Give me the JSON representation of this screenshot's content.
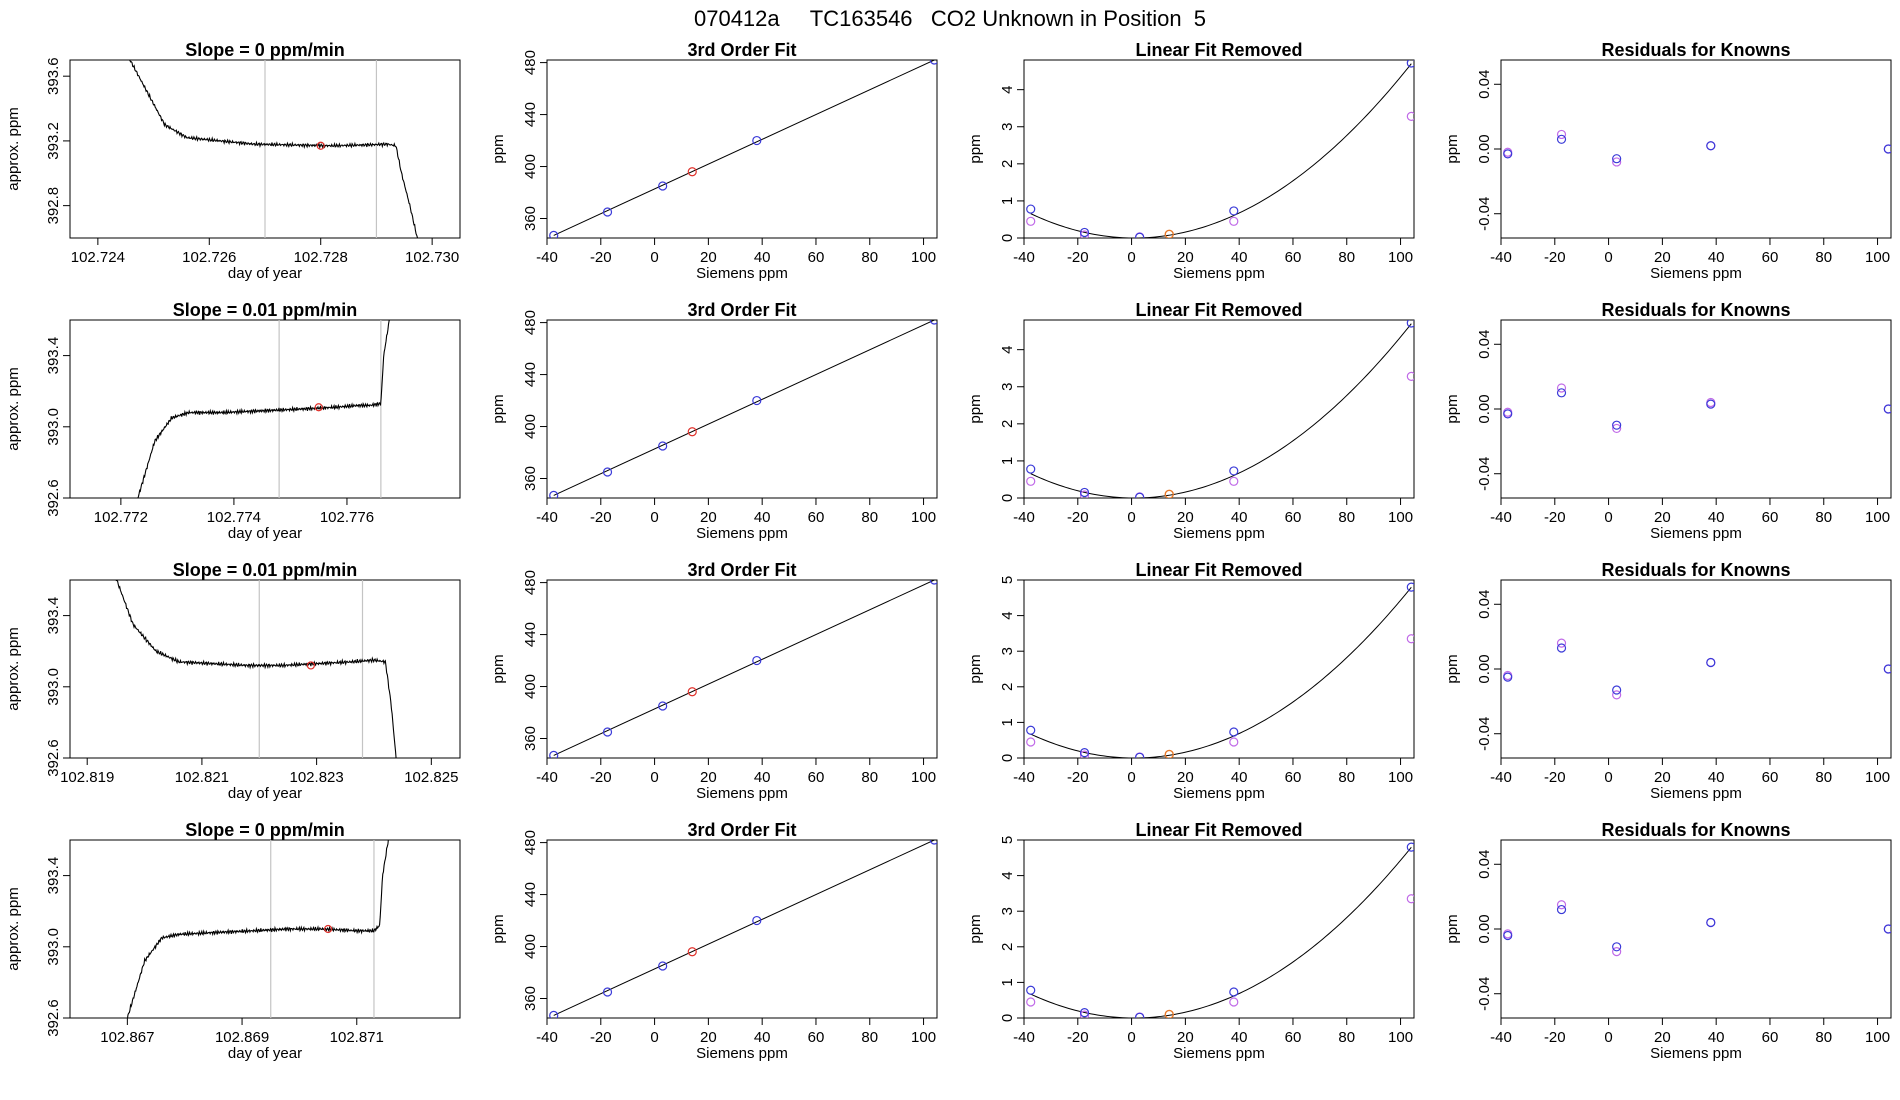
{
  "figure": {
    "title": "070412a     TC163546   CO2 Unknown in Position  5"
  },
  "colors": {
    "line": "#000000",
    "blue": "#3a3ad8",
    "red": "#e0302a",
    "orange": "#e87a2a",
    "violet": "#c06ae8",
    "vline": "#c4c4c4"
  },
  "chart_data": [
    {
      "type": "line",
      "title": "Slope =  0  ppm/min",
      "xlabel": "day of year",
      "ylabel": "approx. ppm",
      "xlim": [
        102.7235,
        102.7305
      ],
      "ylim": [
        392.6,
        393.7
      ],
      "xticks": [
        "102.724",
        "102.726",
        "102.728",
        "102.730"
      ],
      "yticks": [
        "392.8",
        "393.2",
        "393.6"
      ],
      "trace": {
        "x0": 102.7245,
        "x1": 102.7298,
        "x": [
          102.7245,
          102.7252,
          102.7256,
          102.7262,
          102.7268,
          102.7275,
          102.7282,
          102.7288,
          102.7292,
          102.72935,
          102.72945,
          102.7296,
          102.7298
        ],
        "y": [
          393.75,
          393.3,
          393.22,
          393.2,
          393.18,
          393.175,
          393.17,
          393.175,
          393.18,
          393.17,
          393.0,
          392.8,
          392.5
        ]
      },
      "vlines": [
        102.727,
        102.729
      ],
      "point": {
        "x": 102.728,
        "y": 393.17
      }
    },
    {
      "type": "scatter",
      "title": "3rd Order Fit",
      "xlabel": "Siemens ppm",
      "ylabel": "ppm",
      "xlim": [
        -40,
        105
      ],
      "ylim": [
        345,
        482
      ],
      "xticks": [
        "-40",
        "-20",
        "0",
        "20",
        "40",
        "60",
        "80",
        "100"
      ],
      "yticks": [
        "360",
        "400",
        "440",
        "480"
      ],
      "knowns": {
        "x": [
          -37.5,
          -17.5,
          3,
          38,
          104
        ],
        "y": [
          347,
          365,
          385,
          420,
          482
        ]
      },
      "unknown": {
        "x": 14,
        "y": 396
      }
    },
    {
      "type": "scatter",
      "title": "Linear Fit Removed",
      "xlabel": "Siemens ppm",
      "ylabel": "ppm",
      "xlim": [
        -40,
        105
      ],
      "ylim": [
        0,
        4.8
      ],
      "xticks": [
        "-40",
        "-20",
        "0",
        "20",
        "40",
        "60",
        "80",
        "100"
      ],
      "yticks": [
        "0",
        "1",
        "2",
        "3",
        "4"
      ],
      "knowns": {
        "x": [
          -37.5,
          -17.5,
          3,
          38,
          104
        ],
        "y": [
          0.78,
          0.15,
          0.02,
          0.73,
          4.72
        ]
      },
      "knowns2": {
        "x": [
          -37.5,
          -17.5,
          3,
          38,
          104
        ],
        "y": [
          0.45,
          0.08,
          0.03,
          0.45,
          3.28
        ]
      },
      "unknown": {
        "x": 14,
        "y": 0.1
      }
    },
    {
      "type": "scatter",
      "title": "Residuals for Knowns",
      "xlabel": "Siemens ppm",
      "ylabel": "ppm",
      "xlim": [
        -40,
        105
      ],
      "ylim": [
        -0.055,
        0.055
      ],
      "xticks": [
        "-40",
        "-20",
        "0",
        "20",
        "40",
        "60",
        "80",
        "100"
      ],
      "yticks": [
        "-0.04",
        "0.00",
        "0.04"
      ],
      "knowns": {
        "x": [
          -37.5,
          -17.5,
          3,
          38,
          104
        ],
        "y": [
          -0.003,
          0.006,
          -0.006,
          0.002,
          0.0
        ]
      },
      "knowns2": {
        "x": [
          -37.5,
          -17.5,
          3,
          38,
          104
        ],
        "y": [
          -0.002,
          0.009,
          -0.008,
          0.002,
          0.0
        ]
      }
    },
    {
      "type": "line",
      "title": "Slope =  0.01  ppm/min",
      "xlabel": "day of year",
      "ylabel": "approx. ppm",
      "xlim": [
        102.7711,
        102.778
      ],
      "ylim": [
        392.6,
        393.6
      ],
      "xticks": [
        "102.772",
        "102.774",
        "102.776"
      ],
      "yticks": [
        "392.6",
        "393.0",
        "393.4"
      ],
      "trace": {
        "x0": 102.7723,
        "x1": 102.7769,
        "x": [
          102.7723,
          102.7726,
          102.7729,
          102.7732,
          102.7738,
          102.7745,
          102.7752,
          102.7758,
          102.7762,
          102.7764,
          102.7766,
          102.77665,
          102.7768
        ],
        "y": [
          392.6,
          392.92,
          393.05,
          393.08,
          393.08,
          393.09,
          393.1,
          393.11,
          393.12,
          393.12,
          393.13,
          393.4,
          393.7
        ]
      },
      "vlines": [
        102.7748,
        102.7766
      ],
      "point": {
        "x": 102.7755,
        "y": 393.11
      }
    },
    {
      "type": "scatter",
      "title": "3rd Order Fit",
      "xlabel": "Siemens ppm",
      "ylabel": "ppm",
      "xlim": [
        -40,
        105
      ],
      "ylim": [
        345,
        482
      ],
      "xticks": [
        "-40",
        "-20",
        "0",
        "20",
        "40",
        "60",
        "80",
        "100"
      ],
      "yticks": [
        "360",
        "400",
        "440",
        "480"
      ],
      "knowns": {
        "x": [
          -37.5,
          -17.5,
          3,
          38,
          104
        ],
        "y": [
          347,
          365,
          385,
          420,
          482
        ]
      },
      "unknown": {
        "x": 14,
        "y": 396
      }
    },
    {
      "type": "scatter",
      "title": "Linear Fit Removed",
      "xlabel": "Siemens ppm",
      "ylabel": "ppm",
      "xlim": [
        -40,
        105
      ],
      "ylim": [
        0,
        4.8
      ],
      "xticks": [
        "-40",
        "-20",
        "0",
        "20",
        "40",
        "60",
        "80",
        "100"
      ],
      "yticks": [
        "0",
        "1",
        "2",
        "3",
        "4"
      ],
      "knowns": {
        "x": [
          -37.5,
          -17.5,
          3,
          38,
          104
        ],
        "y": [
          0.78,
          0.15,
          0.02,
          0.73,
          4.72
        ]
      },
      "knowns2": {
        "x": [
          -37.5,
          -17.5,
          3,
          38,
          104
        ],
        "y": [
          0.45,
          0.08,
          0.03,
          0.45,
          3.28
        ]
      },
      "unknown": {
        "x": 14,
        "y": 0.1
      }
    },
    {
      "type": "scatter",
      "title": "Residuals for Knowns",
      "xlabel": "Siemens ppm",
      "ylabel": "ppm",
      "xlim": [
        -40,
        105
      ],
      "ylim": [
        -0.055,
        0.055
      ],
      "xticks": [
        "-40",
        "-20",
        "0",
        "20",
        "40",
        "60",
        "80",
        "100"
      ],
      "yticks": [
        "-0.04",
        "0.00",
        "0.04"
      ],
      "knowns": {
        "x": [
          -37.5,
          -17.5,
          3,
          38,
          104
        ],
        "y": [
          -0.003,
          0.01,
          -0.01,
          0.003,
          0.0
        ]
      },
      "knowns2": {
        "x": [
          -37.5,
          -17.5,
          3,
          38,
          104
        ],
        "y": [
          -0.002,
          0.013,
          -0.012,
          0.004,
          0.0
        ]
      }
    },
    {
      "type": "line",
      "title": "Slope =  0.01  ppm/min",
      "xlabel": "day of year",
      "ylabel": "approx. ppm",
      "xlim": [
        102.8187,
        102.8255
      ],
      "ylim": [
        392.6,
        393.6
      ],
      "xticks": [
        "102.819",
        "102.821",
        "102.823",
        "102.825"
      ],
      "yticks": [
        "392.6",
        "393.0",
        "393.4"
      ],
      "trace": {
        "x0": 102.8194,
        "x1": 102.8244,
        "x": [
          102.8194,
          102.8198,
          102.8202,
          102.8206,
          102.8212,
          102.8218,
          102.8224,
          102.823,
          102.8236,
          102.824,
          102.8242,
          102.8243,
          102.8244
        ],
        "y": [
          393.7,
          393.35,
          393.2,
          393.14,
          393.13,
          393.12,
          393.12,
          393.13,
          393.14,
          393.15,
          393.14,
          392.9,
          392.55
        ]
      },
      "vlines": [
        102.822,
        102.8238
      ],
      "point": {
        "x": 102.8229,
        "y": 393.12
      }
    },
    {
      "type": "scatter",
      "title": "3rd Order Fit",
      "xlabel": "Siemens ppm",
      "ylabel": "ppm",
      "xlim": [
        -40,
        105
      ],
      "ylim": [
        345,
        482
      ],
      "xticks": [
        "-40",
        "-20",
        "0",
        "20",
        "40",
        "60",
        "80",
        "100"
      ],
      "yticks": [
        "360",
        "400",
        "440",
        "480"
      ],
      "knowns": {
        "x": [
          -37.5,
          -17.5,
          3,
          38,
          104
        ],
        "y": [
          347,
          365,
          385,
          420,
          482
        ]
      },
      "unknown": {
        "x": 14,
        "y": 396
      }
    },
    {
      "type": "scatter",
      "title": "Linear Fit Removed",
      "xlabel": "Siemens ppm",
      "ylabel": "ppm",
      "xlim": [
        -40,
        105
      ],
      "ylim": [
        0,
        5
      ],
      "xticks": [
        "-40",
        "-20",
        "0",
        "20",
        "40",
        "60",
        "80",
        "100"
      ],
      "yticks": [
        "0",
        "1",
        "2",
        "3",
        "4",
        "5"
      ],
      "knowns": {
        "x": [
          -37.5,
          -17.5,
          3,
          38,
          104
        ],
        "y": [
          0.78,
          0.15,
          0.02,
          0.73,
          4.8
        ]
      },
      "knowns2": {
        "x": [
          -37.5,
          -17.5,
          3,
          38,
          104
        ],
        "y": [
          0.45,
          0.08,
          0.03,
          0.45,
          3.35
        ]
      },
      "unknown": {
        "x": 14,
        "y": 0.1
      }
    },
    {
      "type": "scatter",
      "title": "Residuals for Knowns",
      "xlabel": "Siemens ppm",
      "ylabel": "ppm",
      "xlim": [
        -40,
        105
      ],
      "ylim": [
        -0.055,
        0.055
      ],
      "xticks": [
        "-40",
        "-20",
        "0",
        "20",
        "40",
        "60",
        "80",
        "100"
      ],
      "yticks": [
        "-0.04",
        "0.00",
        "0.04"
      ],
      "knowns": {
        "x": [
          -37.5,
          -17.5,
          3,
          38,
          104
        ],
        "y": [
          -0.005,
          0.013,
          -0.013,
          0.004,
          0.0
        ]
      },
      "knowns2": {
        "x": [
          -37.5,
          -17.5,
          3,
          38,
          104
        ],
        "y": [
          -0.004,
          0.016,
          -0.016,
          0.004,
          0.0
        ]
      }
    },
    {
      "type": "line",
      "title": "Slope =  0  ppm/min",
      "xlabel": "day of year",
      "ylabel": "approx. ppm",
      "xlim": [
        102.866,
        102.8728
      ],
      "ylim": [
        392.6,
        393.6
      ],
      "xticks": [
        "102.867",
        "102.869",
        "102.871"
      ],
      "yticks": [
        "392.6",
        "393.0",
        "393.4"
      ],
      "trace": {
        "x0": 102.867,
        "x1": 102.8717,
        "x": [
          102.867,
          102.8673,
          102.8676,
          102.8679,
          102.8685,
          102.8692,
          102.8698,
          102.8704,
          102.871,
          102.8713,
          102.8714,
          102.87145,
          102.8716
        ],
        "y": [
          392.6,
          392.92,
          393.05,
          393.07,
          393.08,
          393.09,
          393.1,
          393.1,
          393.09,
          393.09,
          393.12,
          393.4,
          393.7
        ]
      },
      "vlines": [
        102.8695,
        102.8713
      ],
      "point": {
        "x": 102.8705,
        "y": 393.1
      }
    },
    {
      "type": "scatter",
      "title": "3rd Order Fit",
      "xlabel": "Siemens ppm",
      "ylabel": "ppm",
      "xlim": [
        -40,
        105
      ],
      "ylim": [
        345,
        482
      ],
      "xticks": [
        "-40",
        "-20",
        "0",
        "20",
        "40",
        "60",
        "80",
        "100"
      ],
      "yticks": [
        "360",
        "400",
        "440",
        "480"
      ],
      "knowns": {
        "x": [
          -37.5,
          -17.5,
          3,
          38,
          104
        ],
        "y": [
          347,
          365,
          385,
          420,
          482
        ]
      },
      "unknown": {
        "x": 14,
        "y": 396
      }
    },
    {
      "type": "scatter",
      "title": "Linear Fit Removed",
      "xlabel": "Siemens ppm",
      "ylabel": "ppm",
      "xlim": [
        -40,
        105
      ],
      "ylim": [
        0,
        5
      ],
      "xticks": [
        "-40",
        "-20",
        "0",
        "20",
        "40",
        "60",
        "80",
        "100"
      ],
      "yticks": [
        "0",
        "1",
        "2",
        "3",
        "4",
        "5"
      ],
      "knowns": {
        "x": [
          -37.5,
          -17.5,
          3,
          38,
          104
        ],
        "y": [
          0.78,
          0.15,
          0.02,
          0.73,
          4.8
        ]
      },
      "knowns2": {
        "x": [
          -37.5,
          -17.5,
          3,
          38,
          104
        ],
        "y": [
          0.45,
          0.08,
          0.03,
          0.45,
          3.35
        ]
      },
      "unknown": {
        "x": 14,
        "y": 0.1
      }
    },
    {
      "type": "scatter",
      "title": "Residuals for Knowns",
      "xlabel": "Siemens ppm",
      "ylabel": "ppm",
      "xlim": [
        -40,
        105
      ],
      "ylim": [
        -0.055,
        0.055
      ],
      "xticks": [
        "-40",
        "-20",
        "0",
        "20",
        "40",
        "60",
        "80",
        "100"
      ],
      "yticks": [
        "-0.04",
        "0.00",
        "0.04"
      ],
      "knowns": {
        "x": [
          -37.5,
          -17.5,
          3,
          38,
          104
        ],
        "y": [
          -0.004,
          0.012,
          -0.011,
          0.004,
          0.0
        ]
      },
      "knowns2": {
        "x": [
          -37.5,
          -17.5,
          3,
          38,
          104
        ],
        "y": [
          -0.003,
          0.015,
          -0.014,
          0.004,
          0.0
        ]
      }
    }
  ]
}
